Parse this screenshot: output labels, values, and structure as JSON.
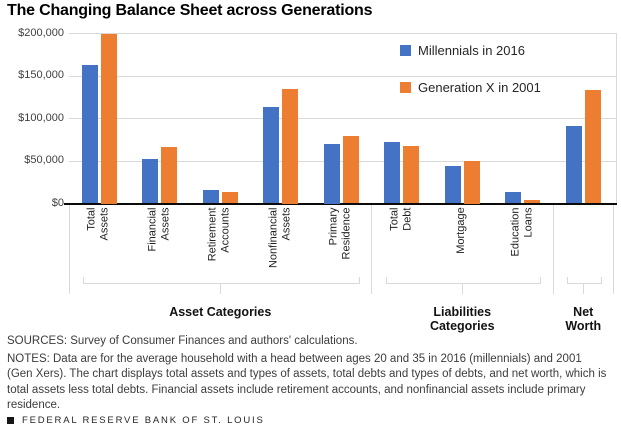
{
  "chart_data": {
    "type": "bar",
    "title": "The Changing Balance Sheet across Generations",
    "categories": [
      "Total Assets",
      "Financial Assets",
      "Retirement Accounts",
      "Nonfinancial Assets",
      "Primary Residence",
      "Total Debt",
      "Mortgage",
      "Education Loans",
      "Net Worth"
    ],
    "tick_labels": [
      "Total\nAssets",
      "Financial\nAssets",
      "Retirement\nAccounts",
      "Nonfinancial\nAssets",
      "Primary\nResidence",
      "Total\nDebt",
      "Mortgage",
      "Education\nLoans",
      ""
    ],
    "groups": [
      {
        "label": "Asset Categories",
        "display": "Asset Categories",
        "span": [
          0,
          4
        ]
      },
      {
        "label": "Liabilities Categories",
        "display": "Liabilities\nCategories",
        "span": [
          5,
          7
        ]
      },
      {
        "label": "Net Worth",
        "display": "Net\nWorth",
        "span": [
          8,
          8
        ]
      }
    ],
    "series": [
      {
        "name": "Millennials in 2016",
        "color": "#4472c4",
        "values": [
          163000,
          52000,
          16000,
          114000,
          70000,
          72000,
          44000,
          14000,
          91000
        ]
      },
      {
        "name": "Generation X in 2001",
        "color": "#ed7d31",
        "values": [
          200000,
          67000,
          14000,
          135000,
          79000,
          68000,
          50000,
          4000,
          133000
        ]
      }
    ],
    "ylim": [
      0,
      200000
    ],
    "yticks": [
      {
        "label": "$0",
        "value": 0
      },
      {
        "label": "$50,000",
        "value": 50000
      },
      {
        "label": "$100,000",
        "value": 100000
      },
      {
        "label": "$150,000",
        "value": 150000
      },
      {
        "label": "$200,000",
        "value": 200000
      }
    ],
    "grid": true,
    "legend_position": "top-right"
  },
  "footnotes": {
    "sources": "SOURCES: Survey of Consumer Finances and authors' calculations.",
    "notes": "NOTES: Data are for the average household with a head between ages 20 and 35 in 2016 (millennials) and 2001 (Gen Xers). The chart displays total assets and types of assets, total debts and types of debts, and net worth, which is total assets less total debts. Financial assets include retirement accounts, and nonfinancial assets include primary residence."
  },
  "footer": {
    "brand": "FEDERAL RESERVE BANK OF ST. LOUIS"
  }
}
